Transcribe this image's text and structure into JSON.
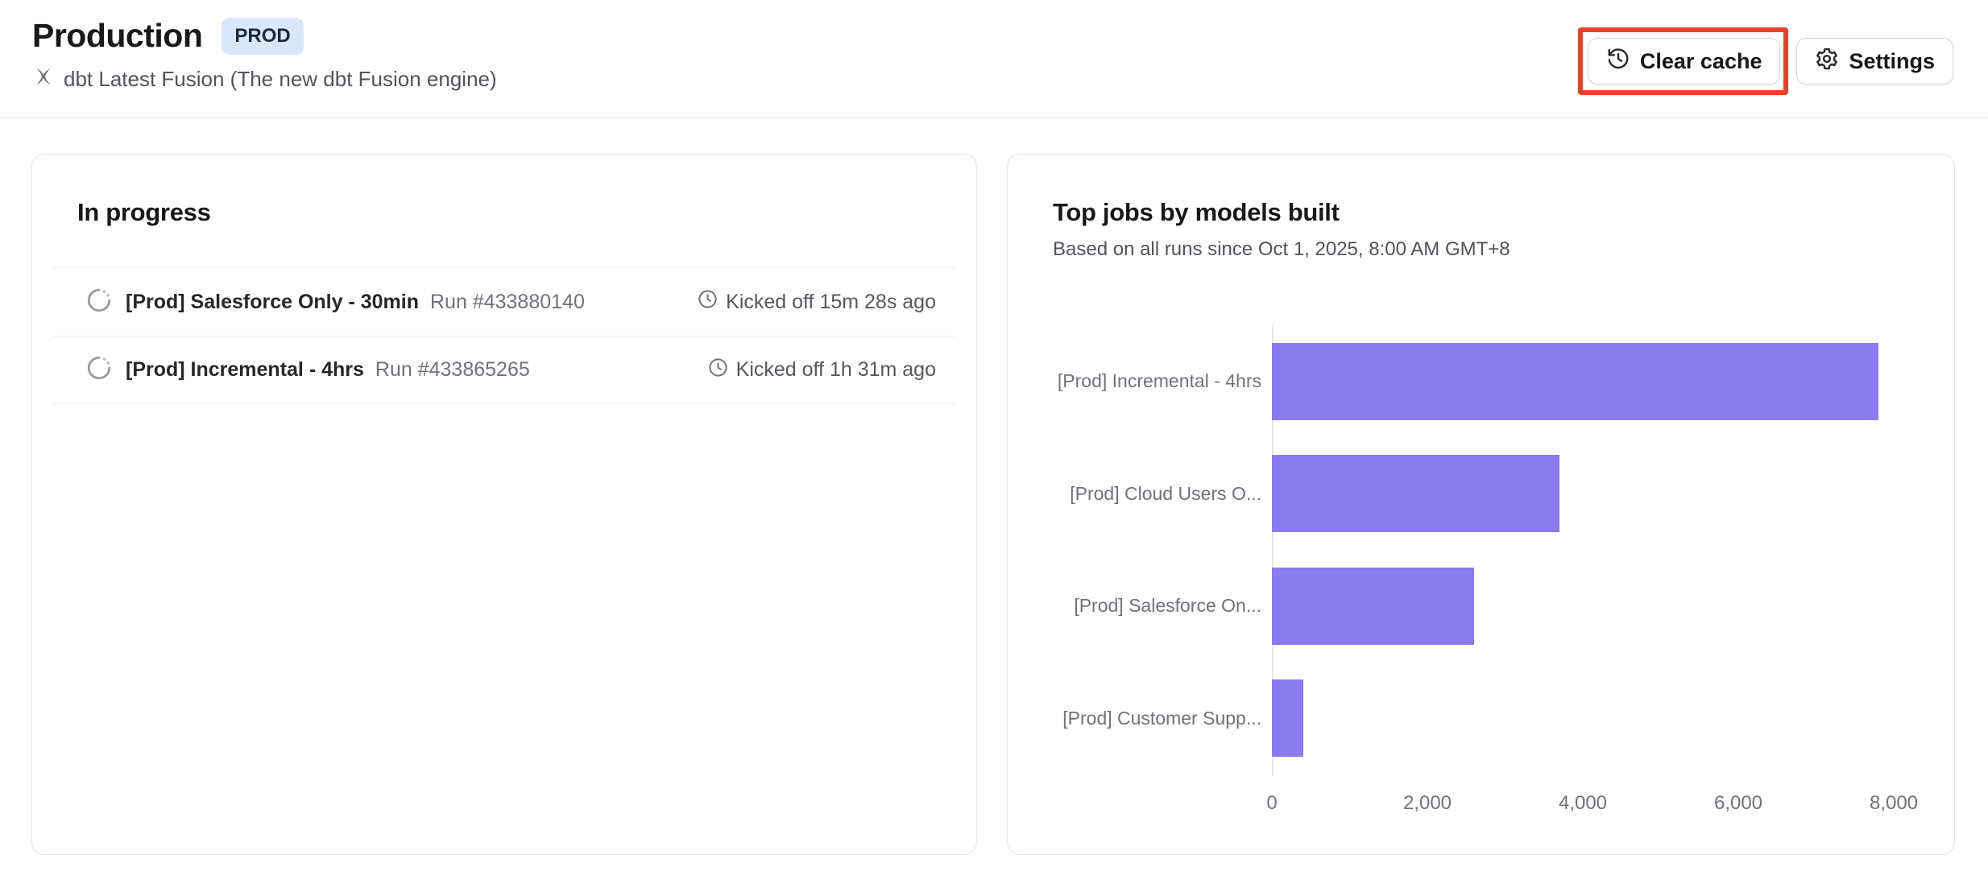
{
  "colors": {
    "accent_purple": "#8b7af0",
    "badge_bg": "#d9e7fb",
    "annotation_red": "#e8432a",
    "card_border": "#e5e5e8",
    "muted_text": "#71717a"
  },
  "icons": {
    "header_engine": "fusion-pinwheel-icon",
    "clear_cache": "history-clock-icon",
    "settings": "gear-icon",
    "run_status": "spinner-icon",
    "kicked_off": "clock-icon"
  },
  "header": {
    "title": "Production",
    "env_badge": "PROD",
    "subtitle": "dbt Latest Fusion (The new dbt Fusion engine)",
    "clear_cache_label": "Clear cache",
    "settings_label": "Settings"
  },
  "in_progress": {
    "title": "In progress",
    "runs": [
      {
        "job_name": "[Prod] Salesforce Only - 30min",
        "run_number": "Run #433880140",
        "kicked_off": "Kicked off 15m 28s ago"
      },
      {
        "job_name": "[Prod] Incremental - 4hrs",
        "run_number": "Run #433865265",
        "kicked_off": "Kicked off 1h 31m ago"
      }
    ]
  },
  "top_jobs": {
    "title": "Top jobs by models built",
    "subtitle": "Based on all runs since Oct 1, 2025, 8:00 AM GMT+8"
  },
  "chart_data": {
    "type": "bar",
    "orientation": "horizontal",
    "title": "Top jobs by models built",
    "categories": [
      "[Prod] Incremental - 4hrs",
      "[Prod] Cloud Users O...",
      "[Prod] Salesforce On...",
      "[Prod] Customer Supp..."
    ],
    "values": [
      7800,
      3700,
      2600,
      400
    ],
    "xlabel": "",
    "ylabel": "",
    "xlim": [
      0,
      8200
    ],
    "xticks": [
      0,
      2000,
      4000,
      6000,
      8000
    ],
    "xtick_labels": [
      "0",
      "2,000",
      "4,000",
      "6,000",
      "8,000"
    ],
    "bar_color": "#8b7af0",
    "grid": false,
    "legend": false
  }
}
